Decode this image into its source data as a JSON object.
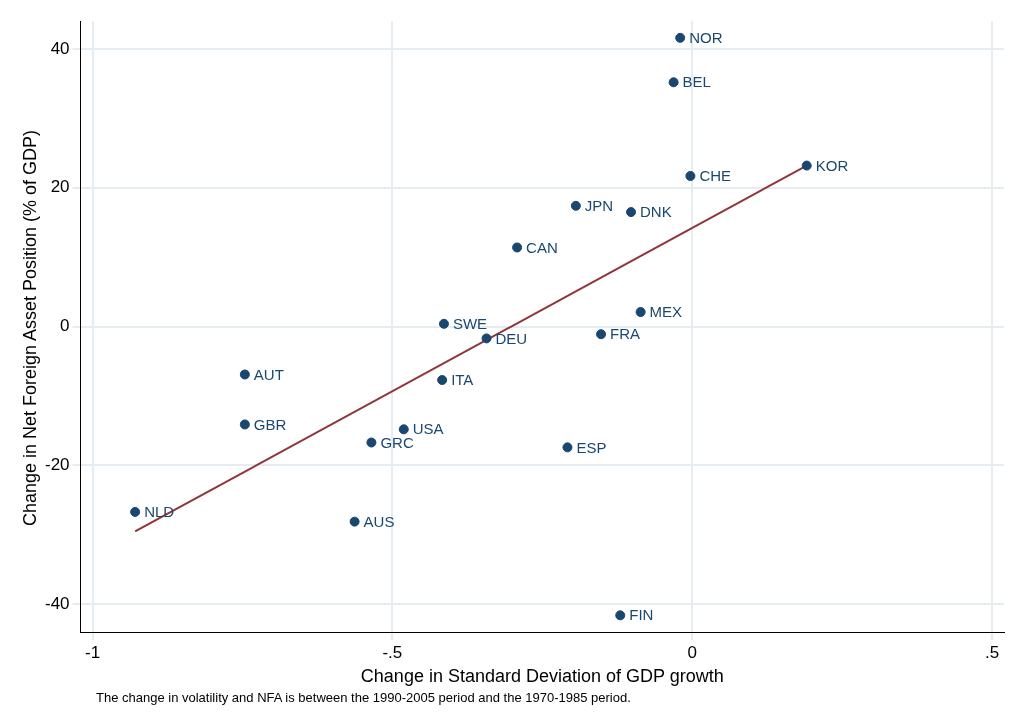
{
  "chart_data": {
    "type": "scatter",
    "xlabel": "Change in Standard Deviation of GDP growth",
    "ylabel": "Change in Net Foreign Asset Position (% of GDP)",
    "series": [
      {
        "color": "#1a476f",
        "x": [
          -0.02,
          -0.031,
          -0.003,
          0.191,
          -0.194,
          -0.102,
          -0.292,
          -0.086,
          -0.414,
          -0.343,
          -0.152,
          -0.746,
          -0.417,
          -0.746,
          -0.481,
          -0.535,
          -0.208,
          -0.929,
          -0.563,
          -0.12
        ],
        "values": [
          41.6,
          35.2,
          21.7,
          23.2,
          17.4,
          16.5,
          11.4,
          2.1,
          0.4,
          -1.7,
          -1.1,
          -6.9,
          -7.7,
          -14.1,
          -14.8,
          -16.7,
          -17.4,
          -26.7,
          -28.1,
          -41.6
        ],
        "marker": "circle"
      },
      {
        "type": "line",
        "color": "#90353b",
        "x": [
          -0.929,
          0.191
        ],
        "values": [
          -29.5,
          23.2
        ],
        "marker": "none",
        "line_style": "solid"
      }
    ],
    "xlim": [
      -1.02,
      0.52
    ],
    "xticks": [
      {
        "value": -1,
        "label": "-1"
      },
      {
        "value": -0.5,
        "label": "-.5"
      },
      0,
      {
        "value": 0.5,
        "label": ".5"
      }
    ],
    "ylim": [
      -44,
      44
    ],
    "yticks": [
      -40,
      -20,
      0,
      20,
      40
    ],
    "grid": true,
    "legend": false,
    "annotations": [
      {
        "text": "NOR",
        "x": -0.02,
        "y": 41.6
      },
      {
        "text": "BEL",
        "x": -0.031,
        "y": 35.2
      },
      {
        "text": "CHE",
        "x": -0.003,
        "y": 21.7
      },
      {
        "text": "KOR",
        "x": 0.191,
        "y": 23.2
      },
      {
        "text": "JPN",
        "x": -0.194,
        "y": 17.4
      },
      {
        "text": "DNK",
        "x": -0.102,
        "y": 16.5
      },
      {
        "text": "CAN",
        "x": -0.292,
        "y": 11.4
      },
      {
        "text": "MEX",
        "x": -0.086,
        "y": 2.1
      },
      {
        "text": "SWE",
        "x": -0.414,
        "y": 0.4
      },
      {
        "text": "DEU",
        "x": -0.343,
        "y": -1.7
      },
      {
        "text": "FRA",
        "x": -0.152,
        "y": -1.1
      },
      {
        "text": "AUT",
        "x": -0.746,
        "y": -6.9
      },
      {
        "text": "ITA",
        "x": -0.417,
        "y": -7.7
      },
      {
        "text": "GBR",
        "x": -0.746,
        "y": -14.1
      },
      {
        "text": "USA",
        "x": -0.481,
        "y": -14.8
      },
      {
        "text": "GRC",
        "x": -0.535,
        "y": -16.7
      },
      {
        "text": "ESP",
        "x": -0.208,
        "y": -17.4
      },
      {
        "text": "NLD",
        "x": -0.929,
        "y": -26.7
      },
      {
        "text": "AUS",
        "x": -0.563,
        "y": -28.1
      },
      {
        "text": "FIN",
        "x": -0.12,
        "y": -41.6
      },
      "The change in volatility and NFA is between the 1990-2005 period and the 1970-1985 period."
    ]
  }
}
